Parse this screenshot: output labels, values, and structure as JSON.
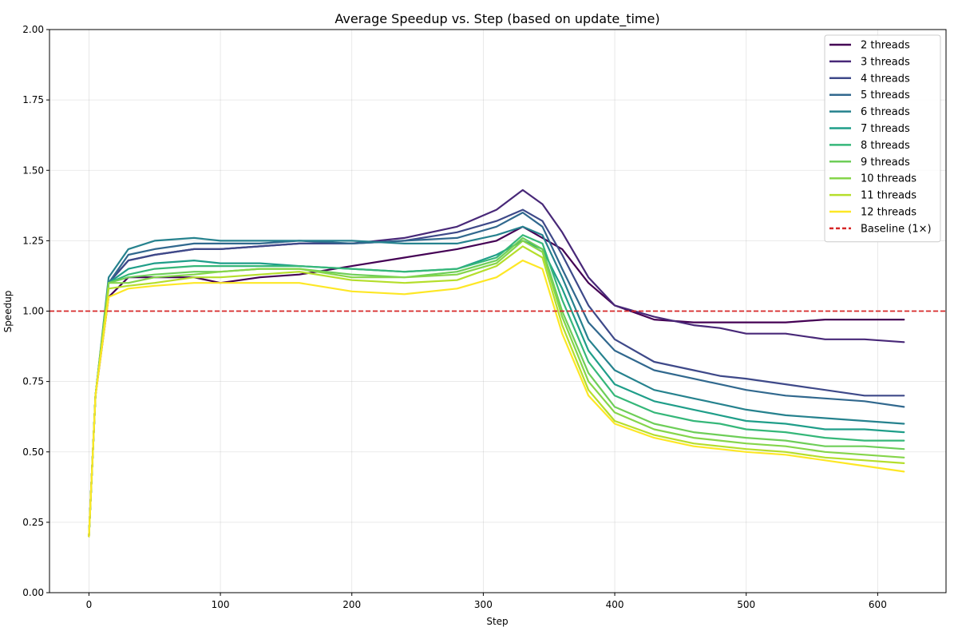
{
  "chart_data": {
    "type": "line",
    "title": "Average Speedup vs. Step (based on update_time)",
    "xlabel": "Step",
    "ylabel": "Speedup",
    "xlim": [
      -30,
      652
    ],
    "ylim": [
      0,
      2.0
    ],
    "xticks": [
      0,
      100,
      200,
      300,
      400,
      500,
      600
    ],
    "yticks": [
      0.0,
      0.25,
      0.5,
      0.75,
      1.0,
      1.25,
      1.5,
      1.75,
      2.0
    ],
    "grid": true,
    "legend_position": "top-right",
    "baseline": {
      "name": "Baseline (1×)",
      "value": 1.0,
      "color": "#d62728",
      "style": "dashed"
    },
    "x": [
      0,
      5,
      15,
      30,
      50,
      80,
      100,
      130,
      160,
      200,
      240,
      280,
      310,
      330,
      345,
      360,
      380,
      400,
      430,
      460,
      480,
      500,
      530,
      560,
      590,
      620
    ],
    "series": [
      {
        "name": "2 threads",
        "color": "#440154",
        "values": [
          0.2,
          0.7,
          1.05,
          1.12,
          1.12,
          1.12,
          1.1,
          1.12,
          1.13,
          1.16,
          1.19,
          1.22,
          1.25,
          1.3,
          1.26,
          1.22,
          1.1,
          1.02,
          0.97,
          0.96,
          0.96,
          0.96,
          0.96,
          0.97,
          0.97,
          0.97
        ]
      },
      {
        "name": "3 threads",
        "color": "#482878",
        "values": [
          0.2,
          0.7,
          1.1,
          1.18,
          1.2,
          1.22,
          1.22,
          1.23,
          1.24,
          1.24,
          1.26,
          1.3,
          1.36,
          1.43,
          1.38,
          1.28,
          1.12,
          1.02,
          0.98,
          0.95,
          0.94,
          0.92,
          0.92,
          0.9,
          0.9,
          0.89
        ]
      },
      {
        "name": "4 threads",
        "color": "#3e4989",
        "values": [
          0.2,
          0.7,
          1.1,
          1.18,
          1.2,
          1.22,
          1.22,
          1.23,
          1.24,
          1.24,
          1.25,
          1.28,
          1.32,
          1.36,
          1.32,
          1.2,
          1.02,
          0.9,
          0.82,
          0.79,
          0.77,
          0.76,
          0.74,
          0.72,
          0.7,
          0.7
        ]
      },
      {
        "name": "5 threads",
        "color": "#31688e",
        "values": [
          0.2,
          0.7,
          1.1,
          1.2,
          1.22,
          1.24,
          1.24,
          1.24,
          1.25,
          1.24,
          1.25,
          1.26,
          1.3,
          1.35,
          1.3,
          1.15,
          0.96,
          0.86,
          0.79,
          0.76,
          0.74,
          0.72,
          0.7,
          0.69,
          0.68,
          0.66
        ]
      },
      {
        "name": "6 threads",
        "color": "#26828e",
        "values": [
          0.2,
          0.7,
          1.12,
          1.22,
          1.25,
          1.26,
          1.25,
          1.25,
          1.25,
          1.25,
          1.24,
          1.24,
          1.27,
          1.3,
          1.27,
          1.12,
          0.9,
          0.79,
          0.72,
          0.69,
          0.67,
          0.65,
          0.63,
          0.62,
          0.61,
          0.6
        ]
      },
      {
        "name": "7 threads",
        "color": "#1f9e89",
        "values": [
          0.2,
          0.7,
          1.1,
          1.15,
          1.17,
          1.18,
          1.17,
          1.17,
          1.16,
          1.15,
          1.14,
          1.15,
          1.2,
          1.25,
          1.22,
          1.08,
          0.86,
          0.74,
          0.68,
          0.65,
          0.63,
          0.61,
          0.6,
          0.58,
          0.58,
          0.57
        ]
      },
      {
        "name": "8 threads",
        "color": "#35b779",
        "values": [
          0.2,
          0.7,
          1.1,
          1.13,
          1.15,
          1.16,
          1.16,
          1.16,
          1.16,
          1.15,
          1.14,
          1.15,
          1.19,
          1.27,
          1.24,
          1.04,
          0.82,
          0.7,
          0.64,
          0.61,
          0.6,
          0.58,
          0.57,
          0.55,
          0.54,
          0.54
        ]
      },
      {
        "name": "9 threads",
        "color": "#6ece58",
        "values": [
          0.2,
          0.7,
          1.1,
          1.12,
          1.13,
          1.14,
          1.14,
          1.15,
          1.15,
          1.13,
          1.12,
          1.14,
          1.18,
          1.26,
          1.22,
          1.0,
          0.78,
          0.66,
          0.6,
          0.57,
          0.56,
          0.55,
          0.54,
          0.52,
          0.52,
          0.51
        ]
      },
      {
        "name": "10 threads",
        "color": "#85d54a",
        "values": [
          0.2,
          0.7,
          1.1,
          1.1,
          1.12,
          1.13,
          1.14,
          1.15,
          1.15,
          1.12,
          1.12,
          1.13,
          1.17,
          1.25,
          1.21,
          0.98,
          0.75,
          0.64,
          0.58,
          0.55,
          0.54,
          0.53,
          0.52,
          0.5,
          0.49,
          0.48
        ]
      },
      {
        "name": "11 threads",
        "color": "#b5de2b",
        "values": [
          0.2,
          0.7,
          1.08,
          1.09,
          1.1,
          1.12,
          1.12,
          1.13,
          1.14,
          1.11,
          1.1,
          1.11,
          1.16,
          1.23,
          1.19,
          0.95,
          0.72,
          0.61,
          0.56,
          0.53,
          0.52,
          0.51,
          0.5,
          0.48,
          0.47,
          0.46
        ]
      },
      {
        "name": "12 threads",
        "color": "#fde725",
        "values": [
          0.2,
          0.7,
          1.05,
          1.08,
          1.09,
          1.1,
          1.1,
          1.1,
          1.1,
          1.07,
          1.06,
          1.08,
          1.12,
          1.18,
          1.15,
          0.92,
          0.7,
          0.6,
          0.55,
          0.52,
          0.51,
          0.5,
          0.49,
          0.47,
          0.45,
          0.43
        ]
      }
    ]
  }
}
